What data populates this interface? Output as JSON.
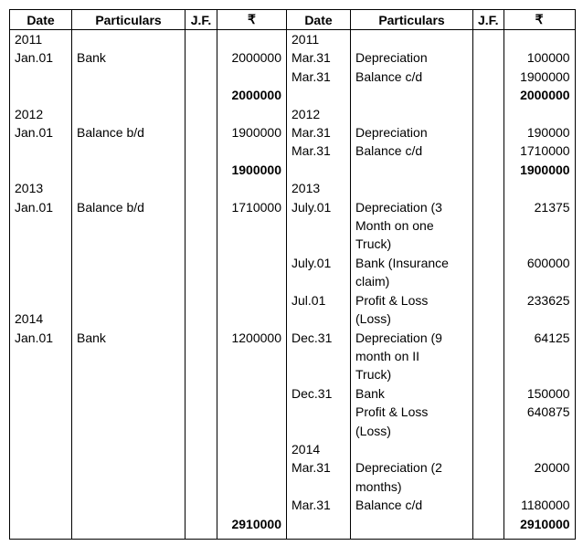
{
  "header": [
    "Date",
    "Particulars",
    "J.F.",
    "₹",
    "Date",
    "Particulars",
    "J.F.",
    "₹"
  ],
  "rows": [
    [
      "2011",
      null,
      null,
      null,
      "2011",
      null,
      null,
      null
    ],
    [
      "Jan.01",
      "Bank",
      null,
      "2000000",
      "Mar.31",
      "Depreciation",
      null,
      "100000"
    ],
    [
      null,
      null,
      null,
      null,
      "Mar.31",
      "Balance c/d",
      null,
      "1900000"
    ],
    [
      null,
      null,
      null,
      "2000000",
      null,
      null,
      null,
      "2000000"
    ],
    [
      "2012",
      null,
      null,
      null,
      "2012",
      null,
      null,
      null
    ],
    [
      "Jan.01",
      "Balance b/d",
      null,
      "1900000",
      "Mar.31",
      "Depreciation",
      null,
      "190000"
    ],
    [
      null,
      null,
      null,
      null,
      "Mar.31",
      "Balance c/d",
      null,
      "1710000"
    ],
    [
      null,
      null,
      null,
      "1900000",
      null,
      null,
      null,
      "1900000"
    ],
    [
      "2013",
      null,
      null,
      null,
      "2013",
      null,
      null,
      null
    ],
    [
      "Jan.01",
      "Balance b/d",
      null,
      "1710000",
      "July.01",
      "Depreciation (3",
      null,
      "21375"
    ],
    [
      null,
      null,
      null,
      null,
      null,
      "Month on one",
      null,
      null
    ],
    [
      null,
      null,
      null,
      null,
      null,
      "Truck)",
      null,
      null
    ],
    [
      null,
      null,
      null,
      null,
      "July.01",
      "Bank (Insurance",
      null,
      "600000"
    ],
    [
      null,
      null,
      null,
      null,
      null,
      "claim)",
      null,
      null
    ],
    [
      null,
      null,
      null,
      null,
      "Jul.01",
      "Profit & Loss",
      null,
      "233625"
    ],
    [
      "2014",
      null,
      null,
      null,
      null,
      "(Loss)",
      null,
      null
    ],
    [
      "Jan.01",
      "Bank",
      null,
      "1200000",
      "Dec.31",
      "Depreciation (9",
      null,
      "64125"
    ],
    [
      null,
      null,
      null,
      null,
      null,
      "month on II",
      null,
      null
    ],
    [
      null,
      null,
      null,
      null,
      null,
      "Truck)",
      null,
      null
    ],
    [
      null,
      null,
      null,
      null,
      "Dec.31",
      "Bank",
      null,
      "150000"
    ],
    [
      null,
      null,
      null,
      null,
      null,
      "Profit & Loss",
      null,
      "640875"
    ],
    [
      null,
      null,
      null,
      null,
      null,
      "(Loss)",
      null,
      null
    ],
    [
      null,
      null,
      null,
      null,
      "2014",
      null,
      null,
      null
    ],
    [
      null,
      null,
      null,
      null,
      "Mar.31",
      "Depreciation (2",
      null,
      "20000"
    ],
    [
      null,
      null,
      null,
      null,
      null,
      "months)",
      null,
      null
    ],
    [
      null,
      null,
      null,
      null,
      "Mar.31",
      "Balance c/d",
      null,
      "1180000"
    ],
    [
      null,
      null,
      null,
      "2910000",
      null,
      null,
      null,
      "2910000"
    ]
  ]
}
